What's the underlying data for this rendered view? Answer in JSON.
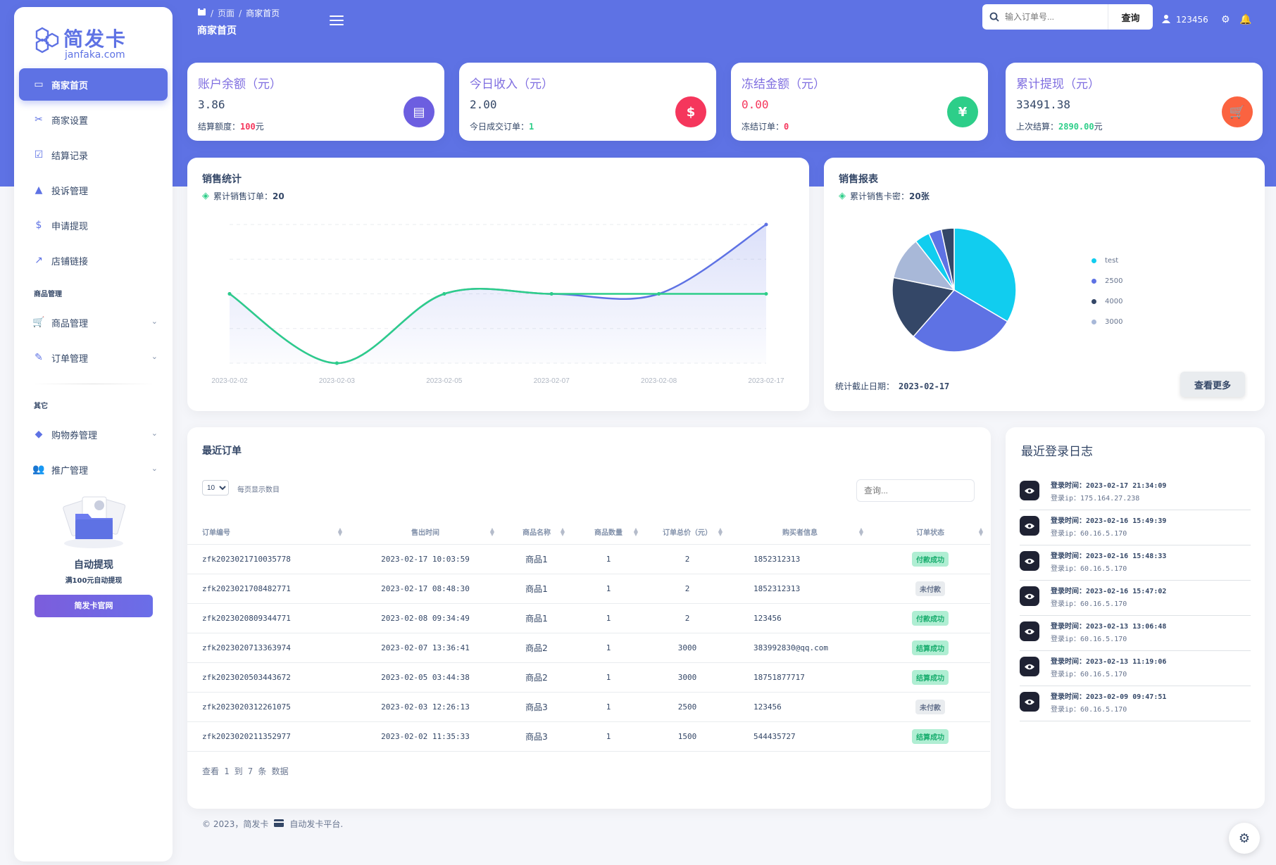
{
  "brand": {
    "name": "简发卡",
    "domain": "janfaka.com",
    "primary": "#5e72e4"
  },
  "sidebar": {
    "items": [
      {
        "label": "商家首页",
        "icon": "store-icon",
        "glyph": "▭",
        "active": true
      },
      {
        "label": "商家设置",
        "icon": "tools-icon",
        "glyph": "✂"
      },
      {
        "label": "结算记录",
        "icon": "check-square-icon",
        "glyph": "☑"
      },
      {
        "label": "投诉管理",
        "icon": "warning-icon",
        "glyph": "▲"
      },
      {
        "label": "申请提现",
        "icon": "dollar-icon",
        "glyph": "$"
      },
      {
        "label": "店铺链接",
        "icon": "external-link-icon",
        "glyph": "↗"
      }
    ],
    "section_goods": "商品管理",
    "goods_items": [
      {
        "label": "商品管理",
        "icon": "cart-icon",
        "glyph": "🛒"
      },
      {
        "label": "订单管理",
        "icon": "edit-icon",
        "glyph": "✎"
      }
    ],
    "section_other": "其它",
    "other_items": [
      {
        "label": "购物券管理",
        "icon": "tag-icon",
        "glyph": "◆"
      },
      {
        "label": "推广管理",
        "icon": "users-icon",
        "glyph": "👥"
      }
    ],
    "promo": {
      "title": "自动提现",
      "subtitle": "满100元自动提现",
      "button": "简发卡官网"
    }
  },
  "header": {
    "breadcrumb": [
      "页面",
      "商家首页"
    ],
    "title": "商家首页",
    "search_placeholder": "输入订单号...",
    "search_button": "查询",
    "username": "123456"
  },
  "stats": [
    {
      "title": "账户余额（元）",
      "value": "3.86",
      "sub_label": "结算额度：",
      "sub_value": "100",
      "sub_suffix": "元",
      "sub_color": "#f5365c",
      "value_red": false,
      "icon": "database-icon",
      "icon_glyph": "▤",
      "icon_color": "#6c5ee0"
    },
    {
      "title": "今日收入（元）",
      "value": "2.00",
      "sub_label": "今日成交订单：",
      "sub_value": "1",
      "sub_suffix": "",
      "sub_color": "#2dce89",
      "value_red": false,
      "icon": "dollar-circle-icon",
      "icon_glyph": "$",
      "icon_color": "#f5365c"
    },
    {
      "title": "冻结金额（元）",
      "value": "0.00",
      "sub_label": "冻结订单：",
      "sub_value": "0",
      "sub_suffix": "",
      "sub_color": "#f5365c",
      "value_red": true,
      "icon": "yen-icon",
      "icon_glyph": "¥",
      "icon_color": "#2dce89"
    },
    {
      "title": "累计提现（元）",
      "value": "33491.38",
      "sub_label": "上次结算：",
      "sub_value": "2890.00",
      "sub_suffix": "元",
      "sub_color": "#2dce89",
      "value_red": false,
      "icon": "cart-icon",
      "icon_glyph": "🛒",
      "icon_color": "#fb6340"
    }
  ],
  "sales_chart": {
    "title": "销售统计",
    "subtitle_label": "累计销售订单：",
    "subtitle_value": "20"
  },
  "sales_report": {
    "title": "销售报表",
    "subtitle_label": "累计销售卡密：",
    "subtitle_value": "20张",
    "date_label": "统计截止日期：",
    "date_value": "2023-02-17",
    "more_button": "查看更多"
  },
  "chart_data": [
    {
      "type": "line",
      "x": [
        "2023-02-02",
        "2023-02-03",
        "2023-02-05",
        "2023-02-07",
        "2023-02-08",
        "2023-02-17"
      ],
      "series": [
        {
          "name": "",
          "values": [
            2,
            0,
            2,
            2,
            2,
            4
          ],
          "color": "#5e72e4",
          "fill": true
        },
        {
          "name": "",
          "values": [
            2,
            0,
            2,
            2,
            2,
            2
          ],
          "color": "#2dce89",
          "fill": false
        }
      ],
      "ylim": [
        0,
        4
      ],
      "grid": true
    },
    {
      "type": "pie",
      "labels": [
        "test",
        "2500",
        "4000",
        "3000"
      ],
      "values": [
        6,
        5,
        3,
        2
      ],
      "colors": [
        "#11cdef",
        "#5e72e4",
        "#344767",
        "#a8b8d8"
      ],
      "extra_slices": [
        {
          "value": 0.7,
          "color": "#11cdef"
        },
        {
          "value": 0.6,
          "color": "#5e72e4"
        },
        {
          "value": 0.6,
          "color": "#344767"
        }
      ],
      "legend": "right"
    }
  ],
  "orders": {
    "title": "最近订单",
    "page_size": "10",
    "page_size_label": "每页显示数目",
    "search_placeholder": "查询...",
    "columns": [
      "订单编号",
      "售出时间",
      "商品名称",
      "商品数量",
      "订单总价（元）",
      "购买者信息",
      "订单状态"
    ],
    "rows": [
      {
        "id": "zfk2023021710035778",
        "time": "2023-02-17 10:03:59",
        "name": "商品1",
        "qty": "1",
        "total": "2",
        "buyer": "1852312313",
        "status": "付款成功",
        "ok": true
      },
      {
        "id": "zfk2023021708482771",
        "time": "2023-02-17 08:48:30",
        "name": "商品1",
        "qty": "1",
        "total": "2",
        "buyer": "1852312313",
        "status": "未付款",
        "ok": false
      },
      {
        "id": "zfk2023020809344771",
        "time": "2023-02-08 09:34:49",
        "name": "商品1",
        "qty": "1",
        "total": "2",
        "buyer": "123456",
        "status": "付款成功",
        "ok": true
      },
      {
        "id": "zfk2023020713363974",
        "time": "2023-02-07 13:36:41",
        "name": "商品2",
        "qty": "1",
        "total": "3000",
        "buyer": "383992830@qq.com",
        "status": "结算成功",
        "ok": true
      },
      {
        "id": "zfk2023020503443672",
        "time": "2023-02-05 03:44:38",
        "name": "商品2",
        "qty": "1",
        "total": "3000",
        "buyer": "18751877717",
        "status": "结算成功",
        "ok": true
      },
      {
        "id": "zfk2023020312261075",
        "time": "2023-02-03 12:26:13",
        "name": "商品3",
        "qty": "1",
        "total": "2500",
        "buyer": "123456",
        "status": "未付款",
        "ok": false
      },
      {
        "id": "zfk2023020211352977",
        "time": "2023-02-02 11:35:33",
        "name": "商品3",
        "qty": "1",
        "total": "1500",
        "buyer": "544435727",
        "status": "结算成功",
        "ok": true
      }
    ],
    "info": "查看 1 到 7 条 数据"
  },
  "login_logs": {
    "title": "最近登录日志",
    "items": [
      {
        "time": "登录时间：2023-02-17 21:34:09",
        "ip": "登录ip：175.164.27.238"
      },
      {
        "time": "登录时间：2023-02-16 15:49:39",
        "ip": "登录ip：60.16.5.170"
      },
      {
        "time": "登录时间：2023-02-16 15:48:33",
        "ip": "登录ip：60.16.5.170"
      },
      {
        "time": "登录时间：2023-02-16 15:47:02",
        "ip": "登录ip：60.16.5.170"
      },
      {
        "time": "登录时间：2023-02-13 13:06:48",
        "ip": "登录ip：60.16.5.170"
      },
      {
        "time": "登录时间：2023-02-13 11:19:06",
        "ip": "登录ip：60.16.5.170"
      },
      {
        "time": "登录时间：2023-02-09 09:47:51",
        "ip": "登录ip：60.16.5.170"
      }
    ]
  },
  "footer": {
    "copyright": "© 2023，简发卡",
    "suffix": "自动发卡平台."
  }
}
